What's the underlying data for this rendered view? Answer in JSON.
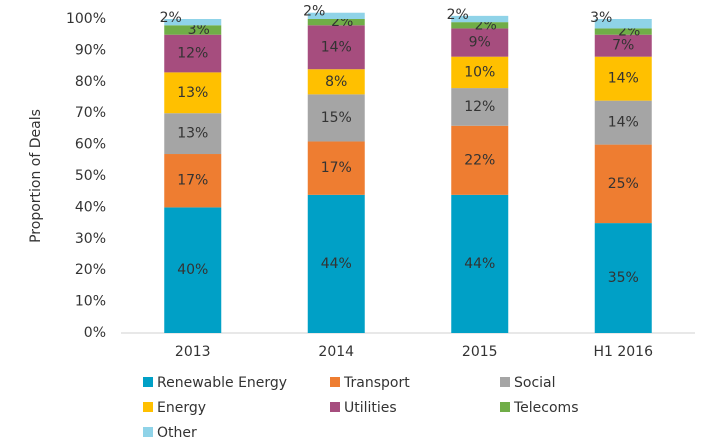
{
  "chart_data": {
    "type": "stacked_bar",
    "y_axis_label": "Proportion of Deals",
    "categories": [
      "2013",
      "2014",
      "2015",
      "H1 2016"
    ],
    "series": [
      {
        "name": "Renewable Energy",
        "color": "#00a0c6",
        "values": [
          40,
          44,
          44,
          35
        ],
        "value_labels": [
          "40%",
          "44%",
          "44%",
          "35%"
        ]
      },
      {
        "name": "Transport",
        "color": "#ee7d31",
        "values": [
          17,
          17,
          22,
          25
        ],
        "value_labels": [
          "17%",
          "17%",
          "22%",
          "25%"
        ]
      },
      {
        "name": "Social",
        "color": "#a5a5a5",
        "values": [
          13,
          15,
          12,
          14
        ],
        "value_labels": [
          "13%",
          "15%",
          "12%",
          "14%"
        ]
      },
      {
        "name": "Energy",
        "color": "#ffc000",
        "values": [
          13,
          8,
          10,
          14
        ],
        "value_labels": [
          "13%",
          "8%",
          "10%",
          "14%"
        ]
      },
      {
        "name": "Utilities",
        "color": "#a64d7e",
        "values": [
          12,
          14,
          9,
          7
        ],
        "value_labels": [
          "12%",
          "14%",
          "9%",
          "7%"
        ]
      },
      {
        "name": "Telecoms",
        "color": "#70ad47",
        "values": [
          3,
          2,
          2,
          2
        ],
        "value_labels": [
          "3%",
          "2%",
          "2%",
          "2%"
        ]
      },
      {
        "name": "Other",
        "color": "#8fd3e8",
        "values": [
          2,
          2,
          2,
          3
        ],
        "value_labels": [
          "2%",
          "2%",
          "2%",
          "3%"
        ]
      }
    ],
    "ylim": [
      0,
      100
    ],
    "yticks": [
      {
        "value": 0,
        "label": "0%"
      },
      {
        "value": 10,
        "label": "10%"
      },
      {
        "value": 20,
        "label": "20%"
      },
      {
        "value": 30,
        "label": "30%"
      },
      {
        "value": 40,
        "label": "40%"
      },
      {
        "value": 50,
        "label": "50%"
      },
      {
        "value": 60,
        "label": "60%"
      },
      {
        "value": 70,
        "label": "70%"
      },
      {
        "value": 80,
        "label": "80%"
      },
      {
        "value": 90,
        "label": "90%"
      },
      {
        "value": 100,
        "label": "100%"
      }
    ],
    "grid": false,
    "legend": "bottom"
  }
}
